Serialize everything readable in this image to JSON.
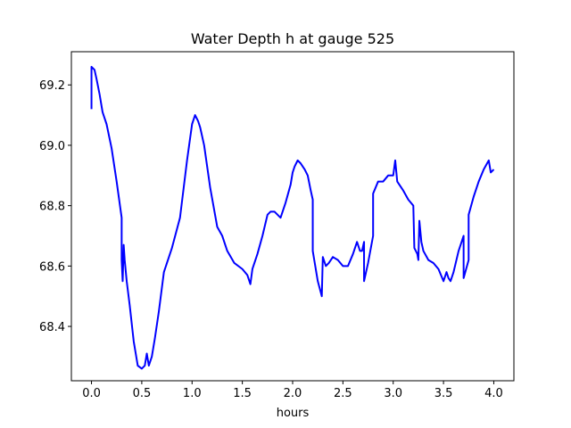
{
  "chart_data": {
    "type": "line",
    "title": "Water Depth h at gauge 525",
    "xlabel": "hours",
    "ylabel": "",
    "xlim": [
      -0.2,
      4.2
    ],
    "ylim": [
      68.22,
      69.31
    ],
    "xticks": [
      0.0,
      0.5,
      1.0,
      1.5,
      2.0,
      2.5,
      3.0,
      3.5,
      4.0
    ],
    "yticks": [
      68.4,
      68.6,
      68.8,
      69.0,
      69.2
    ],
    "xtick_labels": [
      "0.0",
      "0.5",
      "1.0",
      "1.5",
      "2.0",
      "2.5",
      "3.0",
      "3.5",
      "4.0"
    ],
    "ytick_labels": [
      "68.4",
      "68.6",
      "68.8",
      "69.0",
      "69.2"
    ],
    "grid": false,
    "series": [
      {
        "color": "#0000ff",
        "x": [
          0.0,
          0.0,
          0.03,
          0.05,
          0.08,
          0.11,
          0.15,
          0.2,
          0.25,
          0.3,
          0.3,
          0.31,
          0.32,
          0.33,
          0.35,
          0.38,
          0.42,
          0.46,
          0.5,
          0.53,
          0.55,
          0.57,
          0.6,
          0.63,
          0.67,
          0.72,
          0.8,
          0.88,
          0.95,
          1.0,
          1.03,
          1.06,
          1.08,
          1.12,
          1.18,
          1.25,
          1.3,
          1.35,
          1.42,
          1.5,
          1.55,
          1.58,
          1.6,
          1.65,
          1.7,
          1.75,
          1.78,
          1.82,
          1.88,
          1.93,
          1.98,
          2.0,
          2.02,
          2.05,
          2.08,
          2.12,
          2.15,
          2.18,
          2.2,
          2.2,
          2.25,
          2.29,
          2.3,
          2.33,
          2.36,
          2.4,
          2.45,
          2.5,
          2.55,
          2.6,
          2.64,
          2.67,
          2.69,
          2.71,
          2.71,
          2.75,
          2.8,
          2.8,
          2.85,
          2.9,
          2.95,
          3.0,
          3.02,
          3.04,
          3.06,
          3.1,
          3.15,
          3.2,
          3.21,
          3.24,
          3.25,
          3.26,
          3.28,
          3.3,
          3.35,
          3.4,
          3.45,
          3.5,
          3.53,
          3.55,
          3.57,
          3.6,
          3.65,
          3.68,
          3.7,
          3.7,
          3.75,
          3.75,
          3.8,
          3.85,
          3.9,
          3.95,
          3.97,
          4.0
        ],
        "y": [
          69.12,
          69.26,
          69.25,
          69.22,
          69.17,
          69.11,
          69.07,
          68.99,
          68.88,
          68.76,
          68.62,
          68.55,
          68.67,
          68.62,
          68.55,
          68.47,
          68.35,
          68.27,
          68.26,
          68.27,
          68.31,
          68.27,
          68.3,
          68.36,
          68.45,
          68.58,
          68.66,
          68.76,
          68.95,
          69.07,
          69.1,
          69.08,
          69.06,
          69.0,
          68.86,
          68.73,
          68.7,
          68.65,
          68.61,
          68.59,
          68.57,
          68.54,
          68.59,
          68.64,
          68.7,
          68.77,
          68.78,
          68.78,
          68.76,
          68.81,
          68.87,
          68.91,
          68.93,
          68.95,
          68.94,
          68.92,
          68.9,
          68.85,
          68.82,
          68.65,
          68.55,
          68.5,
          68.63,
          68.6,
          68.61,
          68.63,
          68.62,
          68.6,
          68.6,
          68.64,
          68.68,
          68.65,
          68.65,
          68.68,
          68.55,
          68.61,
          68.7,
          68.84,
          68.88,
          68.88,
          68.9,
          68.9,
          68.95,
          68.88,
          68.87,
          68.85,
          68.82,
          68.8,
          68.66,
          68.64,
          68.62,
          68.75,
          68.68,
          68.65,
          68.62,
          68.61,
          68.59,
          68.55,
          68.58,
          68.56,
          68.55,
          68.58,
          68.65,
          68.68,
          68.7,
          68.56,
          68.62,
          68.77,
          68.83,
          68.88,
          68.92,
          68.95,
          68.91,
          68.92
        ]
      }
    ]
  }
}
